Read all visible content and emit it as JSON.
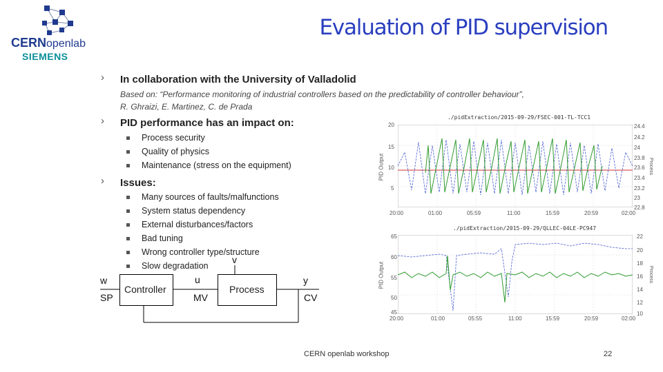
{
  "logo": {
    "cern": "CERN",
    "openlab": "openlab",
    "siemens": "SIEMENS"
  },
  "title": "Evaluation of PID supervision",
  "sections": [
    {
      "label": "In collaboration with the University of Valladolid"
    },
    {
      "label": "PID performance has an impact on:"
    },
    {
      "label": "Issues:"
    }
  ],
  "based_on": {
    "line1": "Based on: “Performance monitoring of industrial controllers based on the predictability of controller behaviour”,",
    "line2": "R. Ghraizi, E. Martinez, C. de Prada"
  },
  "impact_items": [
    "Process security",
    "Quality of physics",
    "Maintenance (stress on the equipment)"
  ],
  "issues_items": [
    "Many sources of faults/malfunctions",
    "System status dependency",
    "External disturbances/factors",
    "Bad tuning",
    "Wrong controller type/structure",
    "Slow degradation"
  ],
  "diagram": {
    "w": "w",
    "sp": "SP",
    "controller": "Controller",
    "u": "u",
    "mv": "MV",
    "v": "v",
    "process": "Process",
    "y": "y",
    "cv": "CV"
  },
  "plot1": {
    "title": "./pidExtraction/2015-09-29/FSEC-001-TL-TCC1",
    "ylabel_left": "PID Output",
    "ylabel_right": "Process",
    "y_left_ticks": [
      "20",
      "15",
      "10",
      "5"
    ],
    "y_right_ticks": [
      "24.4",
      "24.2",
      "24",
      "23.8",
      "23.6",
      "23.4",
      "23.2",
      "23",
      "22.8"
    ],
    "x_ticks": [
      "20:00",
      "01:00",
      "05:59",
      "11:00",
      "15:59",
      "20:59",
      "02:00"
    ]
  },
  "plot2": {
    "title": "./pidExtraction/2015-09-29/QLLEC-04LE-PC947",
    "ylabel_left": "PID Output",
    "ylabel_right": "Process",
    "y_left_ticks": [
      "65",
      "60",
      "55",
      "50",
      "45"
    ],
    "y_right_ticks": [
      "22",
      "20",
      "18",
      "16",
      "14",
      "12",
      "10"
    ],
    "x_ticks": [
      "20:00",
      "01:00",
      "05:55",
      "11:00",
      "15:59",
      "20:59",
      "02:00"
    ]
  },
  "footer": "CERN openlab workshop",
  "page_number": "22",
  "colors": {
    "title": "#2a3fbf",
    "green_series": "#2e9a2e",
    "blue_series": "#4a5fcf",
    "red_series": "#d03030",
    "siemens": "#0a8f9a"
  }
}
